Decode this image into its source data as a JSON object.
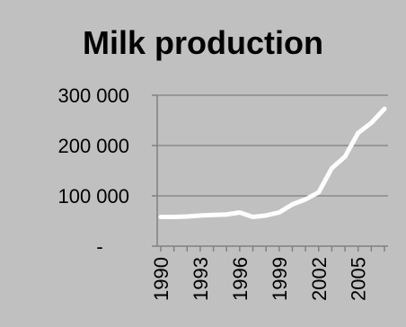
{
  "chart_data": {
    "type": "line",
    "title": "Milk production",
    "xlabel": "",
    "ylabel": "",
    "x": [
      1990,
      1991,
      1992,
      1993,
      1994,
      1995,
      1996,
      1997,
      1998,
      1999,
      2000,
      2001,
      2002,
      2003,
      2004,
      2005,
      2006,
      2007
    ],
    "series": [
      {
        "values": [
          58000,
          58000,
          59000,
          61000,
          62000,
          63000,
          67000,
          58000,
          61000,
          67000,
          83000,
          93000,
          107000,
          155000,
          178000,
          225000,
          245000,
          273000
        ]
      }
    ],
    "xlim": [
      1990,
      2007
    ],
    "ylim": [
      0,
      300000
    ],
    "y_ticks": [
      {
        "value": 0,
        "label": "-"
      },
      {
        "value": 100000,
        "label": "100 000"
      },
      {
        "value": 200000,
        "label": "200 000"
      },
      {
        "value": 300000,
        "label": "300 000"
      }
    ],
    "x_tick_labels": [
      {
        "value": 1990,
        "label": "1990"
      },
      {
        "value": 1993,
        "label": "1993"
      },
      {
        "value": 1996,
        "label": "1996"
      },
      {
        "value": 1999,
        "label": "1999"
      },
      {
        "value": 2002,
        "label": "2002"
      },
      {
        "value": 2005,
        "label": "2005"
      }
    ],
    "grid": "horizontal",
    "legend": "none",
    "colors": {
      "background": "#c0c0c0",
      "line": "#ffffff",
      "grid": "#808080",
      "axis": "#808080",
      "text": "#000000"
    }
  }
}
